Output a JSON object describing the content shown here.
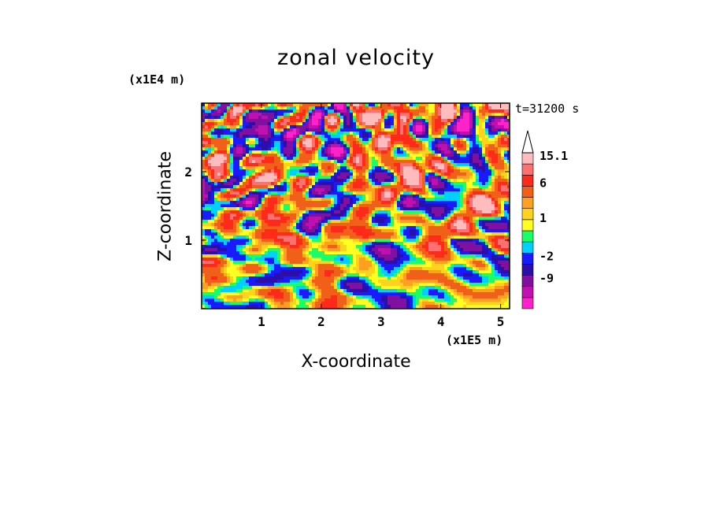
{
  "chart_data": {
    "type": "heatmap",
    "title": "zonal velocity",
    "xlabel": "X-coordinate",
    "ylabel": "Z-coordinate",
    "x_scale_label": "(x1E5 m)",
    "z_scale_label": "(x1E4 m)",
    "time_label": "t=31200 s",
    "xlim": [
      0.0,
      5.15
    ],
    "zlim": [
      0.0,
      3.0
    ],
    "x_ticks": [
      "1",
      "2",
      "3",
      "4",
      "5"
    ],
    "z_ticks": [
      "1",
      "2"
    ],
    "colorbar": {
      "labels": [
        "15.1",
        "6",
        "1",
        "-2",
        "-9"
      ],
      "levels": [
        -15,
        -12,
        -9,
        -6,
        -4,
        -2,
        -1,
        0,
        1,
        2,
        3,
        6,
        9,
        12,
        15.1
      ],
      "colors": [
        "#ff22c8",
        "#c010b0",
        "#8010a0",
        "#2a10a8",
        "#1a1aff",
        "#00d0ff",
        "#19ff6a",
        "#ffff22",
        "#ffd21e",
        "#ffa020",
        "#f06018",
        "#ff2a1a",
        "#ff7070",
        "#ffbcbc"
      ]
    }
  }
}
